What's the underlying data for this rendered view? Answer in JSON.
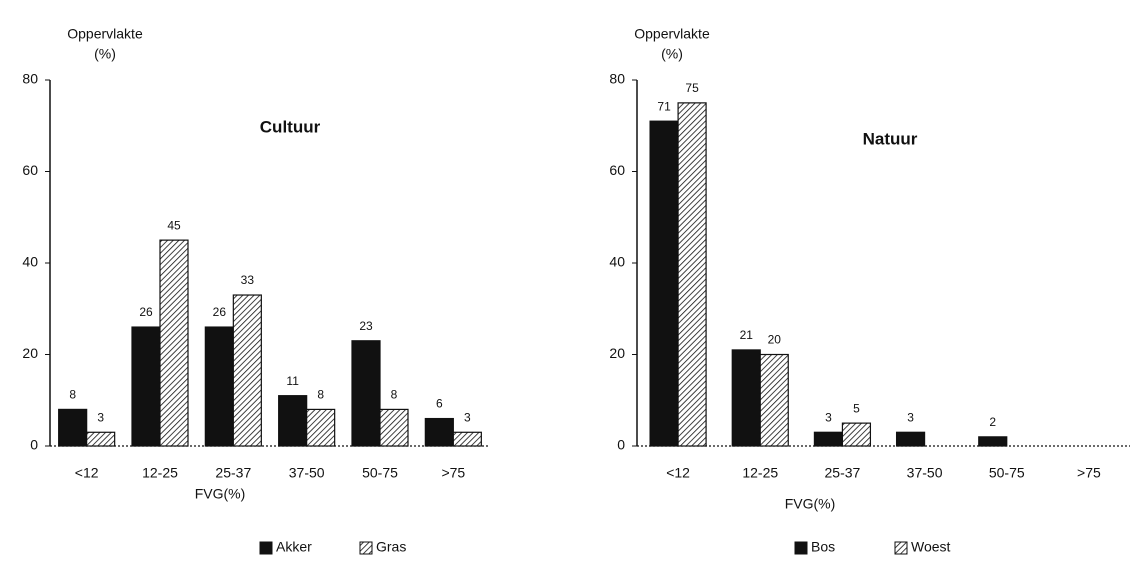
{
  "chart_data": [
    {
      "type": "bar",
      "title": "Cultuur",
      "ylabel": [
        "Oppervlakte",
        "(%)"
      ],
      "xlabel": "FVG(%)",
      "categories": [
        "<12",
        "12-25",
        "25-37",
        "37-50",
        "50-75",
        ">75"
      ],
      "series": [
        {
          "name": "Akker",
          "color": "#111111",
          "hatch": false,
          "values": [
            8,
            26,
            26,
            11,
            23,
            6
          ]
        },
        {
          "name": "Gras",
          "color": "#111111",
          "hatch": true,
          "values": [
            3,
            45,
            33,
            8,
            8,
            3
          ]
        }
      ],
      "ylim": [
        0,
        80
      ],
      "yticks": [
        0,
        20,
        40,
        60,
        80
      ],
      "data_labels": true
    },
    {
      "type": "bar",
      "title": "Natuur",
      "ylabel": [
        "Oppervlakte",
        "(%)"
      ],
      "xlabel": "FVG(%)",
      "categories": [
        "<12",
        "12-25",
        "25-37",
        "37-50",
        "50-75",
        ">75"
      ],
      "series": [
        {
          "name": "Bos",
          "color": "#111111",
          "hatch": false,
          "values": [
            71,
            21,
            3,
            3,
            2,
            null
          ]
        },
        {
          "name": "Woest",
          "color": "#111111",
          "hatch": true,
          "values": [
            75,
            20,
            5,
            null,
            null,
            null
          ]
        }
      ],
      "ylim": [
        0,
        80
      ],
      "yticks": [
        0,
        20,
        40,
        60,
        80
      ],
      "data_labels": true
    }
  ]
}
